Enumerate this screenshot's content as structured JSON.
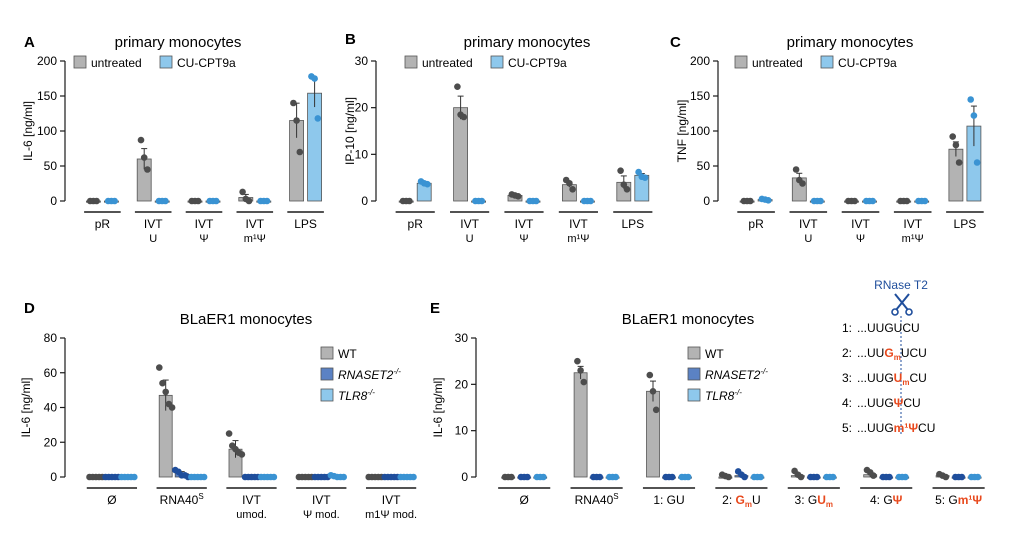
{
  "colors": {
    "untreated": "#b3b3b3",
    "cu": "#8ec8ec",
    "wt": "#b3b3b3",
    "rnaset2": "#5b82c4",
    "tlr8": "#8ec8ec",
    "dot_grey": "#4d4d4d",
    "dot_blue": "#3a93d3",
    "dot_rnaset2": "#1f4e9c",
    "highlight": "#e8491d",
    "scissors": "#1f4e9c"
  },
  "chart_data": [
    {
      "id": "A",
      "type": "bar",
      "letter": "A",
      "title": "primary monocytes",
      "ylabel": "IL-6 [ng/ml]",
      "ylim": [
        0,
        200
      ],
      "yticks": [
        0,
        50,
        100,
        150,
        200
      ],
      "series": [
        {
          "name": "untreated",
          "key": "untreated"
        },
        {
          "name": "CU-CPT9a",
          "key": "cu"
        }
      ],
      "groups": [
        {
          "label": "pR",
          "label2": "",
          "values": [
            0,
            0
          ],
          "points": [
            [
              0,
              0,
              0
            ],
            [
              0,
              0,
              0
            ]
          ]
        },
        {
          "label": "IVT",
          "label2": "U",
          "values": [
            60,
            0
          ],
          "points": [
            [
              87,
              62,
              45
            ],
            [
              0,
              0,
              0
            ]
          ]
        },
        {
          "label": "IVT",
          "label2": "Ψ",
          "values": [
            0,
            0
          ],
          "points": [
            [
              0,
              0,
              0
            ],
            [
              0,
              0,
              0
            ]
          ]
        },
        {
          "label": "IVT",
          "label2": "m¹Ψ",
          "values": [
            5,
            0
          ],
          "points": [
            [
              13,
              3,
              0
            ],
            [
              0,
              0,
              0
            ]
          ]
        },
        {
          "label": "LPS",
          "label2": "",
          "values": [
            115,
            154
          ],
          "points": [
            [
              140,
              115,
              70
            ],
            [
              178,
              175,
              118
            ]
          ]
        }
      ]
    },
    {
      "id": "B",
      "type": "bar",
      "letter": "B",
      "title": "primary monocytes",
      "ylabel": "IP-10 [ng/ml]",
      "ylim": [
        0,
        30
      ],
      "yticks": [
        0,
        10,
        20,
        30
      ],
      "series": [
        {
          "name": "untreated",
          "key": "untreated"
        },
        {
          "name": "CU-CPT9a",
          "key": "cu"
        }
      ],
      "groups": [
        {
          "label": "pR",
          "label2": "",
          "values": [
            0,
            3.8
          ],
          "points": [
            [
              0,
              0,
              0
            ],
            [
              4.2,
              3.8,
              3.6
            ]
          ]
        },
        {
          "label": "IVT",
          "label2": "U",
          "values": [
            20,
            0
          ],
          "points": [
            [
              24.5,
              18.5,
              18.0
            ],
            [
              0,
              0,
              0
            ]
          ]
        },
        {
          "label": "IVT",
          "label2": "Ψ",
          "values": [
            1.2,
            0
          ],
          "points": [
            [
              1.4,
              1.2,
              1.0
            ],
            [
              0,
              0,
              0
            ]
          ]
        },
        {
          "label": "IVT",
          "label2": "m¹Ψ",
          "values": [
            3.5,
            0
          ],
          "points": [
            [
              4.5,
              3.8,
              2.5
            ],
            [
              0,
              0,
              0
            ]
          ]
        },
        {
          "label": "LPS",
          "label2": "",
          "values": [
            4,
            5.5
          ],
          "points": [
            [
              6.5,
              3.5,
              2.5
            ],
            [
              6.2,
              5.2,
              5.0
            ]
          ]
        }
      ]
    },
    {
      "id": "C",
      "type": "bar",
      "letter": "C",
      "title": "primary monocytes",
      "ylabel": "TNF [ng/ml]",
      "ylim": [
        0,
        200
      ],
      "yticks": [
        0,
        50,
        100,
        150,
        200
      ],
      "series": [
        {
          "name": "untreated",
          "key": "untreated"
        },
        {
          "name": "CU-CPT9a",
          "key": "cu"
        }
      ],
      "groups": [
        {
          "label": "pR",
          "label2": "",
          "values": [
            0,
            2
          ],
          "points": [
            [
              0,
              0,
              0
            ],
            [
              3,
              2,
              1
            ]
          ]
        },
        {
          "label": "IVT",
          "label2": "U",
          "values": [
            33,
            0
          ],
          "points": [
            [
              45,
              30,
              25
            ],
            [
              0,
              0,
              0
            ]
          ]
        },
        {
          "label": "IVT",
          "label2": "Ψ",
          "values": [
            0,
            0
          ],
          "points": [
            [
              0,
              0,
              0
            ],
            [
              0,
              0,
              0
            ]
          ]
        },
        {
          "label": "IVT",
          "label2": "m¹Ψ",
          "values": [
            0,
            0
          ],
          "points": [
            [
              0,
              0,
              0
            ],
            [
              0,
              0,
              0
            ]
          ]
        },
        {
          "label": "LPS",
          "label2": "",
          "values": [
            74,
            107
          ],
          "points": [
            [
              92,
              80,
              55
            ],
            [
              145,
              122,
              55
            ]
          ]
        }
      ]
    },
    {
      "id": "D",
      "type": "bar",
      "letter": "D",
      "title": "BLaER1 monocytes",
      "ylabel": "IL-6 [ng/ml]",
      "ylim": [
        0,
        80
      ],
      "yticks": [
        0,
        20,
        40,
        60,
        80
      ],
      "series": [
        {
          "name": "WT",
          "key": "wt"
        },
        {
          "name": "RNASET2",
          "sup": "-/-",
          "key": "rnaset2"
        },
        {
          "name": "TLR8",
          "sup": "-/-",
          "key": "tlr8"
        }
      ],
      "groups": [
        {
          "label": "Ø",
          "label2": "",
          "values": [
            0,
            0,
            0
          ],
          "points": [
            [
              0,
              0,
              0,
              0,
              0
            ],
            [
              0,
              0,
              0,
              0,
              0
            ],
            [
              0,
              0,
              0,
              0,
              0
            ]
          ]
        },
        {
          "label": "RNA40",
          "sup": "S",
          "label2": "",
          "values": [
            47,
            2,
            0
          ],
          "points": [
            [
              63,
              54,
              49,
              42,
              40
            ],
            [
              4,
              3,
              1,
              1,
              0
            ],
            [
              0,
              0,
              0,
              0,
              0
            ]
          ]
        },
        {
          "label": "IVT",
          "label2": "umod.",
          "values": [
            16,
            0,
            0
          ],
          "points": [
            [
              25,
              18,
              16,
              14,
              13
            ],
            [
              0,
              0,
              0,
              0,
              0
            ],
            [
              0,
              0,
              0,
              0,
              0
            ]
          ]
        },
        {
          "label": "IVT",
          "label2": "Ψ mod.",
          "values": [
            0,
            0,
            0.5
          ],
          "points": [
            [
              0,
              0,
              0,
              0,
              0
            ],
            [
              0,
              0,
              0,
              0,
              0
            ],
            [
              1,
              0.5,
              0,
              0,
              0
            ]
          ]
        },
        {
          "label": "IVT",
          "label2": "m1Ψ mod.",
          "values": [
            0,
            0,
            0
          ],
          "points": [
            [
              0,
              0,
              0,
              0,
              0
            ],
            [
              0,
              0,
              0,
              0,
              0
            ],
            [
              0,
              0,
              0,
              0,
              0
            ]
          ]
        }
      ]
    },
    {
      "id": "E",
      "type": "bar",
      "letter": "E",
      "title": "BLaER1 monocytes",
      "ylabel": "IL-6 [ng/ml]",
      "ylim": [
        0,
        30
      ],
      "yticks": [
        0,
        10,
        20,
        30
      ],
      "series": [
        {
          "name": "WT",
          "key": "wt"
        },
        {
          "name": "RNASET2",
          "sup": "-/-",
          "key": "rnaset2"
        },
        {
          "name": "TLR8",
          "sup": "-/-",
          "key": "tlr8"
        }
      ],
      "groups": [
        {
          "label": "Ø",
          "label2": "",
          "values": [
            0,
            0,
            0
          ],
          "points": [
            [
              0,
              0,
              0
            ],
            [
              0,
              0,
              0
            ],
            [
              0,
              0,
              0
            ]
          ]
        },
        {
          "label": "RNA40",
          "sup": "S",
          "label2": "",
          "values": [
            22.5,
            0,
            0
          ],
          "points": [
            [
              25,
              23,
              20.5
            ],
            [
              0,
              0,
              0
            ],
            [
              0,
              0,
              0
            ]
          ]
        },
        {
          "label": "1: GU",
          "label2": "",
          "values": [
            18.5,
            0,
            0
          ],
          "points": [
            [
              22,
              18.5,
              14.5
            ],
            [
              0,
              0,
              0
            ],
            [
              0,
              0,
              0
            ]
          ]
        },
        {
          "label": "2: ",
          "rich": [
            [
              "G",
              "hl"
            ],
            [
              "m",
              "hlsub"
            ],
            [
              "U",
              "n"
            ]
          ],
          "label2": "",
          "values": [
            0,
            0.3,
            0
          ],
          "points": [
            [
              0.5,
              0.2,
              0
            ],
            [
              1.2,
              0.5,
              0
            ],
            [
              0,
              0,
              0
            ]
          ]
        },
        {
          "label": "3: ",
          "rich": [
            [
              "G",
              "n"
            ],
            [
              "U",
              "hl"
            ],
            [
              "m",
              "hlsub"
            ]
          ],
          "label2": "",
          "values": [
            0.3,
            0,
            0
          ],
          "points": [
            [
              1.3,
              0.5,
              0
            ],
            [
              0,
              0,
              0
            ],
            [
              0,
              0,
              0
            ]
          ]
        },
        {
          "label": "4: ",
          "rich": [
            [
              "G",
              "n"
            ],
            [
              "Ψ",
              "hl"
            ]
          ],
          "label2": "",
          "values": [
            0.5,
            0,
            0
          ],
          "points": [
            [
              1.5,
              1,
              0.3
            ],
            [
              0,
              0,
              0
            ],
            [
              0,
              0,
              0
            ]
          ]
        },
        {
          "label": "5: ",
          "rich": [
            [
              "G",
              "n"
            ],
            [
              "m¹Ψ",
              "hl"
            ]
          ],
          "label2": "",
          "values": [
            0.3,
            0,
            0
          ],
          "points": [
            [
              0.6,
              0.3,
              0
            ],
            [
              0,
              0,
              0
            ],
            [
              0,
              0,
              0
            ]
          ]
        }
      ]
    }
  ],
  "diagram": {
    "title": "RNase T2",
    "rows": [
      {
        "n": "1:",
        "seq": [
          [
            "...UUG",
            "n"
          ],
          [
            "UCU",
            "n"
          ]
        ]
      },
      {
        "n": "2:",
        "seq": [
          [
            "...UU",
            "n"
          ],
          [
            "G",
            "hl"
          ],
          [
            "m",
            "hlsub"
          ],
          [
            "UCU",
            "n"
          ]
        ]
      },
      {
        "n": "3:",
        "seq": [
          [
            "...UUG",
            "n"
          ],
          [
            "U",
            "hl"
          ],
          [
            "m",
            "hlsub"
          ],
          [
            "CU",
            "n"
          ]
        ]
      },
      {
        "n": "4:",
        "seq": [
          [
            "...UUG",
            "n"
          ],
          [
            "Ψ",
            "hl"
          ],
          [
            "CU",
            "n"
          ]
        ]
      },
      {
        "n": "5:",
        "seq": [
          [
            "...UUG",
            "n"
          ],
          [
            "m¹Ψ",
            "hl"
          ],
          [
            "CU",
            "n"
          ]
        ]
      }
    ]
  }
}
